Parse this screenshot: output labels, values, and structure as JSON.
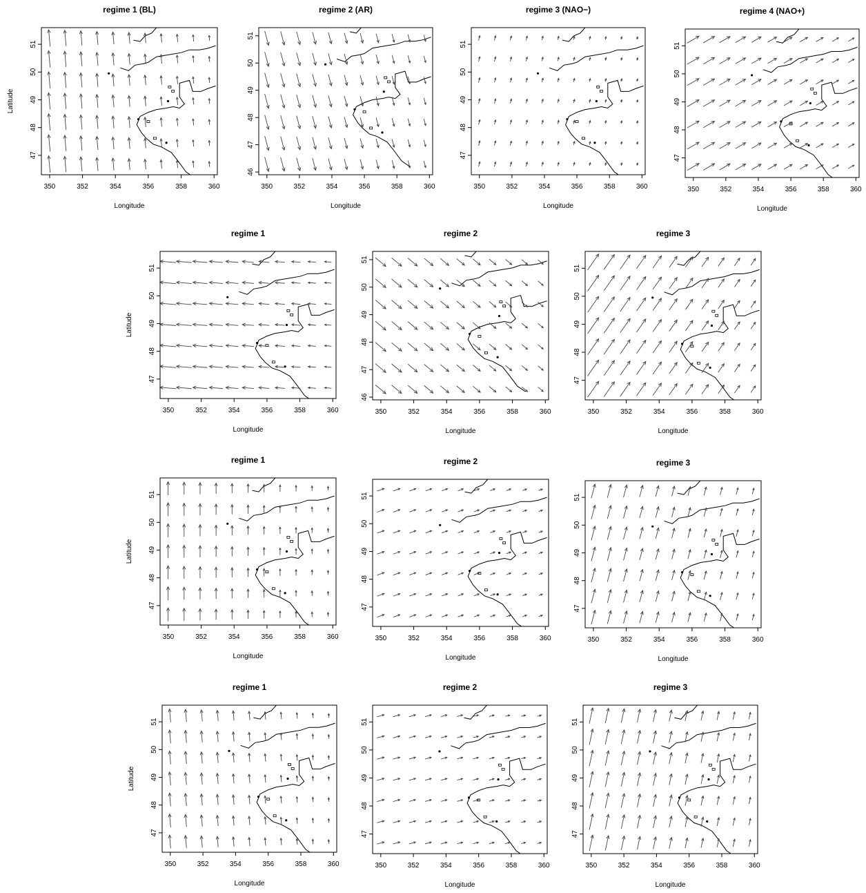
{
  "chart_data": [
    {
      "type": "vector_field",
      "title": "regime 1 (BL)",
      "xlabel": "Longitude",
      "ylabel": "Latitude",
      "xlim": [
        349.5,
        360.2
      ],
      "ylim": [
        46.3,
        51.6
      ],
      "x_ticks": [
        "350",
        "352",
        "354",
        "356",
        "358",
        "360"
      ],
      "y_ticks": [
        "47",
        "48",
        "49",
        "50",
        "51"
      ],
      "wind": {
        "angle_deg": 95,
        "strength": 0.8,
        "left_bias": 1.7
      }
    },
    {
      "type": "vector_field",
      "title": "regime 2 (AR)",
      "xlabel": "Longitude",
      "ylabel": "",
      "xlim": [
        349.5,
        360.2
      ],
      "ylim": [
        45.9,
        51.3
      ],
      "x_ticks": [
        "350",
        "352",
        "354",
        "356",
        "358",
        "360"
      ],
      "y_ticks": [
        "46",
        "47",
        "48",
        "49",
        "50",
        "51"
      ],
      "wind": {
        "angle_deg": -75,
        "strength": 1.0,
        "left_bias": 1.2
      }
    },
    {
      "type": "vector_field",
      "title": "regime 3 (NAO−)",
      "xlabel": "Longitude",
      "ylabel": "",
      "xlim": [
        349.5,
        360.2
      ],
      "ylim": [
        46.3,
        51.6
      ],
      "x_ticks": [
        "350",
        "352",
        "354",
        "356",
        "358",
        "360"
      ],
      "y_ticks": [
        "47",
        "48",
        "49",
        "50",
        "51"
      ],
      "wind": {
        "angle_deg": 75,
        "strength": 0.4,
        "left_bias": 1.0
      }
    },
    {
      "type": "vector_field",
      "title": "regime 4 (NAO+)",
      "xlabel": "Longitude",
      "ylabel": "",
      "xlim": [
        349.5,
        360.2
      ],
      "ylim": [
        46.3,
        51.6
      ],
      "x_ticks": [
        "350",
        "352",
        "354",
        "356",
        "358",
        "360"
      ],
      "y_ticks": [
        "47",
        "48",
        "49",
        "50",
        "51"
      ],
      "wind": {
        "angle_deg": 30,
        "strength": 1.0,
        "left_bias": 1.1
      }
    },
    {
      "type": "vector_field",
      "title": "regime 1",
      "xlabel": "Longitude",
      "ylabel": "Latitude",
      "xlim": [
        349.5,
        360.2
      ],
      "ylim": [
        46.3,
        51.6
      ],
      "x_ticks": [
        "350",
        "352",
        "354",
        "356",
        "358",
        "360"
      ],
      "y_ticks": [
        "47",
        "48",
        "49",
        "50",
        "51"
      ],
      "wind": {
        "angle_deg": 175,
        "strength": 1.0,
        "left_bias": 1.3
      }
    },
    {
      "type": "vector_field",
      "title": "regime 2",
      "xlabel": "Longitude",
      "ylabel": "",
      "xlim": [
        349.5,
        360.2
      ],
      "ylim": [
        45.9,
        51.3
      ],
      "x_ticks": [
        "350",
        "352",
        "354",
        "356",
        "358",
        "360"
      ],
      "y_ticks": [
        "46",
        "47",
        "48",
        "49",
        "50",
        "51"
      ],
      "wind": {
        "angle_deg": -40,
        "strength": 1.0,
        "left_bias": 1.1
      }
    },
    {
      "type": "vector_field",
      "title": "regime 3",
      "xlabel": "Longitude",
      "ylabel": "",
      "xlim": [
        349.5,
        360.2
      ],
      "ylim": [
        46.3,
        51.6
      ],
      "x_ticks": [
        "350",
        "352",
        "354",
        "356",
        "358",
        "360"
      ],
      "y_ticks": [
        "47",
        "48",
        "49",
        "50",
        "51"
      ],
      "wind": {
        "angle_deg": 55,
        "strength": 1.2,
        "left_bias": 1.3
      }
    },
    {
      "type": "vector_field",
      "title": "regime 1",
      "xlabel": "Longitude",
      "ylabel": "Latitude",
      "xlim": [
        349.5,
        360.2
      ],
      "ylim": [
        46.3,
        51.6
      ],
      "x_ticks": [
        "350",
        "352",
        "354",
        "356",
        "358",
        "360"
      ],
      "y_ticks": [
        "47",
        "48",
        "49",
        "50",
        "51"
      ],
      "wind": {
        "angle_deg": 90,
        "strength": 0.6,
        "left_bias": 1.8
      }
    },
    {
      "type": "vector_field",
      "title": "regime 2",
      "xlabel": "Longitude",
      "ylabel": "",
      "xlim": [
        349.5,
        360.2
      ],
      "ylim": [
        46.3,
        51.6
      ],
      "x_ticks": [
        "350",
        "352",
        "354",
        "356",
        "358",
        "360"
      ],
      "y_ticks": [
        "47",
        "48",
        "49",
        "50",
        "51"
      ],
      "wind": {
        "angle_deg": 20,
        "strength": 0.6,
        "left_bias": 1.0
      }
    },
    {
      "type": "vector_field",
      "title": "regime 3",
      "xlabel": "Longitude",
      "ylabel": "",
      "xlim": [
        349.5,
        360.2
      ],
      "ylim": [
        46.3,
        51.6
      ],
      "x_ticks": [
        "350",
        "352",
        "354",
        "356",
        "358",
        "360"
      ],
      "y_ticks": [
        "47",
        "48",
        "49",
        "50",
        "51"
      ],
      "wind": {
        "angle_deg": 75,
        "strength": 0.9,
        "left_bias": 1.3
      }
    },
    {
      "type": "vector_field",
      "title": "regime 1",
      "xlabel": "Longitude",
      "ylabel": "Latitude",
      "xlim": [
        349.5,
        360.2
      ],
      "ylim": [
        46.3,
        51.6
      ],
      "x_ticks": [
        "350",
        "352",
        "354",
        "356",
        "358",
        "360"
      ],
      "y_ticks": [
        "47",
        "48",
        "49",
        "50",
        "51"
      ],
      "wind": {
        "angle_deg": 95,
        "strength": 0.6,
        "left_bias": 1.8
      }
    },
    {
      "type": "vector_field",
      "title": "regime 2",
      "xlabel": "Longitude",
      "ylabel": "",
      "xlim": [
        349.5,
        360.2
      ],
      "ylim": [
        46.3,
        51.6
      ],
      "x_ticks": [
        "350",
        "352",
        "354",
        "356",
        "358",
        "360"
      ],
      "y_ticks": [
        "47",
        "48",
        "49",
        "50",
        "51"
      ],
      "wind": {
        "angle_deg": 15,
        "strength": 0.6,
        "left_bias": 1.0
      }
    },
    {
      "type": "vector_field",
      "title": "regime 3",
      "xlabel": "Longitude",
      "ylabel": "",
      "xlim": [
        349.5,
        360.2
      ],
      "ylim": [
        46.3,
        51.6
      ],
      "x_ticks": [
        "350",
        "352",
        "354",
        "356",
        "358",
        "360"
      ],
      "y_ticks": [
        "47",
        "48",
        "49",
        "50",
        "51"
      ],
      "wind": {
        "angle_deg": 78,
        "strength": 1.0,
        "left_bias": 1.3
      }
    }
  ]
}
